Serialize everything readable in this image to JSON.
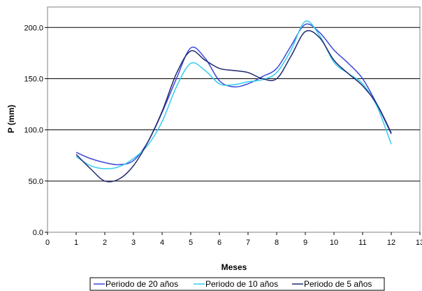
{
  "chart_data": {
    "type": "line",
    "title": "",
    "xlabel": "Meses",
    "ylabel": "P (mm)",
    "xlim": [
      0,
      13
    ],
    "ylim": [
      0,
      220
    ],
    "xticks": [
      "0",
      "1",
      "2",
      "3",
      "4",
      "5",
      "6",
      "7",
      "8",
      "9",
      "10",
      "11",
      "12",
      "13"
    ],
    "yticks": [
      "0.0",
      "50.0",
      "100.0",
      "150.0",
      "200.0"
    ],
    "grid": "horizontal",
    "legend_position": "bottom",
    "series": [
      {
        "name": "Periodo de 20 años",
        "color": "#3b46d8",
        "x": [
          1,
          1.5,
          2,
          2.5,
          3,
          3.5,
          4,
          4.5,
          5,
          5.5,
          6,
          6.5,
          7,
          7.5,
          8,
          8.5,
          9,
          9.5,
          10,
          10.5,
          11,
          11.5,
          12
        ],
        "y": [
          78,
          72,
          68,
          66,
          70,
          88,
          117,
          150,
          180,
          170,
          148,
          142,
          145,
          152,
          160,
          182,
          203,
          195,
          178,
          165,
          150,
          125,
          96
        ]
      },
      {
        "name": "Periodo de 10 años",
        "color": "#33ccee",
        "x": [
          1,
          1.5,
          2,
          2.5,
          3,
          3.5,
          4,
          4.5,
          5,
          5.5,
          6,
          6.5,
          7,
          7.5,
          8,
          8.5,
          9,
          9.5,
          10,
          10.5,
          11,
          11.5,
          12
        ],
        "y": [
          74,
          65,
          62,
          64,
          72,
          85,
          108,
          142,
          165,
          158,
          145,
          144,
          147,
          149,
          156,
          178,
          206,
          192,
          166,
          155,
          145,
          123,
          86
        ]
      },
      {
        "name": "Periodo de 5 años",
        "color": "#1f2a6e",
        "x": [
          1,
          1.5,
          2,
          2.5,
          3,
          3.5,
          4,
          4.5,
          5,
          5.5,
          6,
          6.5,
          7,
          7.5,
          8,
          8.5,
          9,
          9.5,
          10,
          10.5,
          11,
          11.5,
          12
        ],
        "y": [
          76,
          62,
          50,
          52,
          65,
          88,
          118,
          155,
          177,
          168,
          160,
          158,
          156,
          150,
          150,
          172,
          196,
          190,
          168,
          155,
          143,
          125,
          97
        ]
      }
    ]
  }
}
